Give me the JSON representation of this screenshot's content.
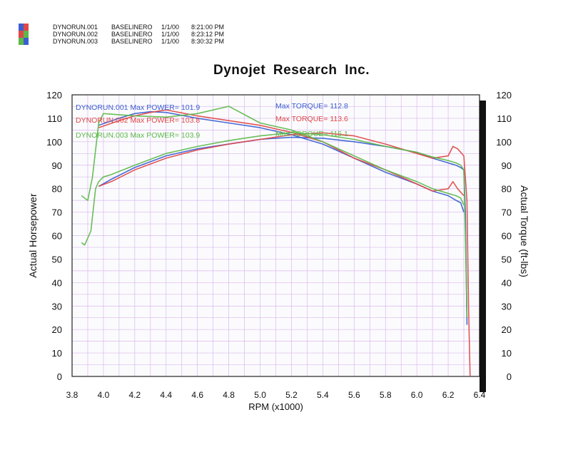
{
  "legend": {
    "runs": [
      {
        "id": "DYNORUN.001",
        "name": "BASELINERO",
        "date": "1/1/00",
        "time": "8:21:00 PM",
        "color": "#3a5fd0"
      },
      {
        "id": "DYNORUN.002",
        "name": "BASELINERO",
        "date": "1/1/00",
        "time": "8:23:12 PM",
        "color": "#e04848"
      },
      {
        "id": "DYNORUN.003",
        "name": "BASELINERO",
        "date": "1/1/00",
        "time": "8:30:32 PM",
        "color": "#5cb84a"
      }
    ]
  },
  "title": "Dynojet Research Inc.",
  "chart_data": {
    "type": "line",
    "title": "Dynojet Research Inc.",
    "xlabel": "RPM (x1000)",
    "ylabel": "Actual Horsepower",
    "y2label": "Actual Torque (ft-lbs)",
    "xlim": [
      3.8,
      6.4
    ],
    "ylim": [
      0,
      120
    ],
    "y2lim": [
      0,
      120
    ],
    "xticks": [
      "3.8",
      "4.0",
      "4.2",
      "4.4",
      "4.6",
      "4.8",
      "5.0",
      "5.2",
      "5.4",
      "5.6",
      "5.8",
      "6.0",
      "6.2",
      "6.4"
    ],
    "yticks": [
      "0",
      "10",
      "20",
      "30",
      "40",
      "50",
      "60",
      "70",
      "80",
      "90",
      "100",
      "110",
      "120"
    ],
    "y2ticks": [
      "0",
      "10",
      "20",
      "30",
      "40",
      "50",
      "60",
      "70",
      "80",
      "90",
      "100",
      "110",
      "120"
    ],
    "grid": true,
    "annotations": [
      {
        "run": "DYNORUN.001",
        "power_label": "Max POWER= 101.9",
        "torque_label": "Max TORQUE= 112.8",
        "color": "#3a5fd0"
      },
      {
        "run": "DYNORUN.002",
        "power_label": "Max POWER= 103.8",
        "torque_label": "Max TORQUE= 113.6",
        "color": "#e04848"
      },
      {
        "run": "DYNORUN.003",
        "power_label": "Max POWER= 103.9",
        "torque_label": "Max TORQUE= 115.1",
        "color": "#5cb84a"
      }
    ],
    "series": [
      {
        "run": "DYNORUN.001",
        "measure": "power",
        "color": "#3a5fd0",
        "x": [
          3.97,
          4.05,
          4.2,
          4.4,
          4.6,
          4.8,
          5.0,
          5.1,
          5.2,
          5.4,
          5.6,
          5.8,
          6.0,
          6.1,
          6.2,
          6.25,
          6.28,
          6.3,
          6.31,
          6.32
        ],
        "y": [
          81,
          84,
          89,
          94,
          97,
          99,
          101,
          101.5,
          101.9,
          101.5,
          100,
          98,
          95.5,
          93,
          91,
          90,
          89,
          88,
          70,
          22
        ]
      },
      {
        "run": "DYNORUN.001",
        "measure": "torque",
        "color": "#3a5fd0",
        "x": [
          3.97,
          4.1,
          4.2,
          4.3,
          4.4,
          4.6,
          4.8,
          5.0,
          5.2,
          5.4,
          5.6,
          5.8,
          6.0,
          6.1,
          6.2,
          6.25,
          6.28,
          6.3
        ],
        "y": [
          107,
          110,
          112,
          112.8,
          112.5,
          110,
          108,
          106,
          103,
          99,
          93,
          87,
          82,
          79,
          77,
          75,
          74,
          70
        ]
      },
      {
        "run": "DYNORUN.002",
        "measure": "power",
        "color": "#e04848",
        "x": [
          3.97,
          4.05,
          4.2,
          4.4,
          4.6,
          4.8,
          5.0,
          5.2,
          5.4,
          5.6,
          5.8,
          6.0,
          6.1,
          6.2,
          6.23,
          6.26,
          6.3,
          6.32,
          6.33,
          6.34
        ],
        "y": [
          81,
          83,
          88,
          93,
          96.5,
          99,
          101,
          103,
          103.8,
          102.5,
          99,
          95,
          93,
          94,
          98,
          97,
          94,
          75,
          30,
          0
        ]
      },
      {
        "run": "DYNORUN.002",
        "measure": "torque",
        "color": "#e04848",
        "x": [
          3.97,
          4.1,
          4.2,
          4.3,
          4.4,
          4.6,
          4.8,
          5.0,
          5.2,
          5.4,
          5.6,
          5.8,
          6.0,
          6.1,
          6.2,
          6.23,
          6.26,
          6.3
        ],
        "y": [
          106,
          109,
          111,
          112.5,
          113.6,
          111,
          109,
          107,
          104,
          100,
          93,
          88,
          82,
          79,
          80,
          83,
          80,
          77
        ]
      },
      {
        "run": "DYNORUN.003",
        "measure": "power",
        "color": "#5cb84a",
        "x": [
          3.86,
          3.88,
          3.92,
          3.95,
          3.97,
          4.0,
          4.05,
          4.2,
          4.4,
          4.6,
          4.8,
          5.0,
          5.2,
          5.4,
          5.6,
          5.8,
          6.0,
          6.1,
          6.2,
          6.25,
          6.28,
          6.3,
          6.31,
          6.32
        ],
        "y": [
          57,
          56,
          62,
          80,
          83,
          85,
          86,
          90,
          95,
          98,
          100.5,
          102.5,
          103.9,
          103,
          101,
          98,
          95.5,
          93.5,
          92,
          91,
          90,
          88,
          60,
          25
        ]
      },
      {
        "run": "DYNORUN.003",
        "measure": "torque",
        "color": "#5cb84a",
        "x": [
          3.86,
          3.9,
          3.93,
          3.97,
          4.0,
          4.2,
          4.4,
          4.6,
          4.8,
          5.0,
          5.2,
          5.4,
          5.6,
          5.8,
          6.0,
          6.1,
          6.2,
          6.25,
          6.28,
          6.3
        ],
        "y": [
          77,
          75,
          85,
          108,
          112,
          111,
          110.5,
          112,
          115.1,
          108,
          105,
          100,
          94,
          88,
          83,
          80,
          78,
          77,
          76,
          73
        ]
      }
    ]
  }
}
